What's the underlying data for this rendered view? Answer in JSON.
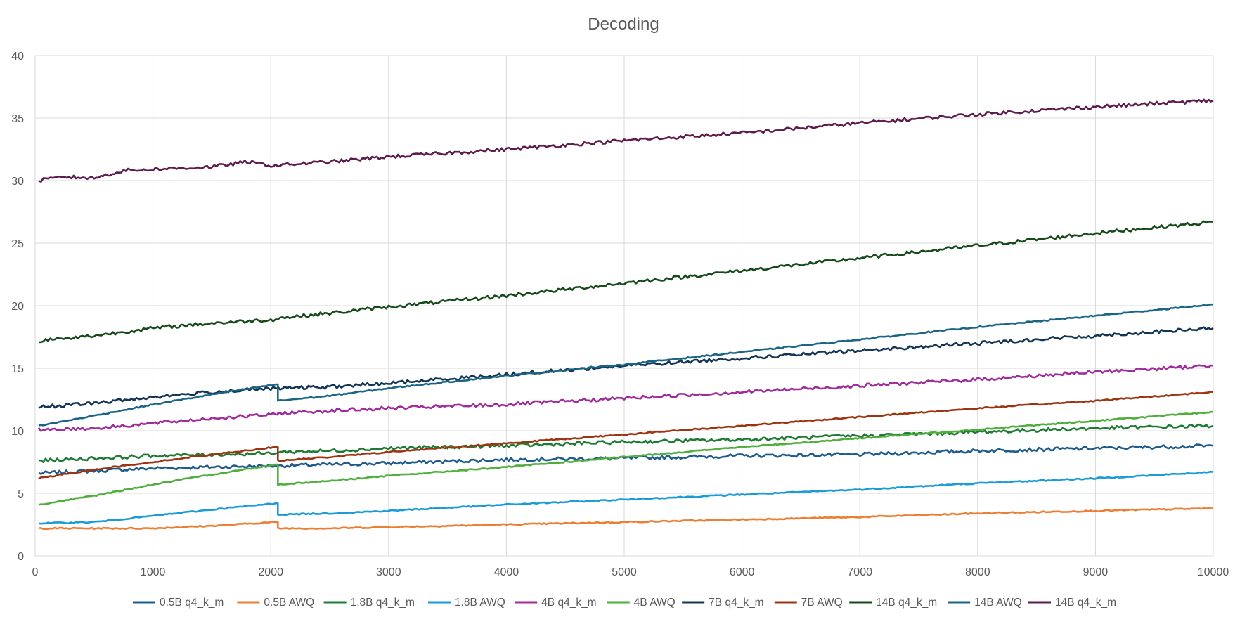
{
  "chart_data": {
    "type": "line",
    "title": "Decoding",
    "xlabel": "",
    "ylabel": "",
    "xlim": [
      0,
      10000
    ],
    "ylim": [
      0,
      40
    ],
    "x_ticks": [
      0,
      1000,
      2000,
      3000,
      4000,
      5000,
      6000,
      7000,
      8000,
      9000,
      10000
    ],
    "y_ticks": [
      0,
      5,
      10,
      15,
      20,
      25,
      30,
      35,
      40
    ],
    "grid": true,
    "legend_position": "bottom",
    "series": [
      {
        "name": "0.5B q4_k_m",
        "color": "#1f5c8b",
        "x": [
          30,
          500,
          1000,
          1500,
          2040,
          2060,
          2500,
          3000,
          4000,
          5000,
          6000,
          7000,
          8000,
          9000,
          10000
        ],
        "values": [
          6.6,
          6.8,
          7.0,
          7.1,
          7.2,
          7.2,
          7.3,
          7.4,
          7.7,
          7.8,
          8.0,
          8.1,
          8.4,
          8.6,
          8.8
        ]
      },
      {
        "name": "0.5B AWQ",
        "color": "#ed7d31",
        "x": [
          30,
          500,
          1000,
          1500,
          2040,
          2060,
          2500,
          3000,
          4000,
          5000,
          6000,
          7000,
          8000,
          9000,
          10000
        ],
        "values": [
          2.2,
          2.2,
          2.2,
          2.4,
          2.7,
          2.2,
          2.2,
          2.3,
          2.5,
          2.7,
          2.9,
          3.1,
          3.4,
          3.6,
          3.8
        ]
      },
      {
        "name": "1.8B q4_k_m",
        "color": "#1e7b34",
        "x": [
          30,
          500,
          1000,
          1500,
          2040,
          2060,
          2500,
          3000,
          4000,
          5000,
          6000,
          7000,
          8000,
          9000,
          10000
        ],
        "values": [
          7.6,
          7.8,
          8.0,
          8.1,
          8.2,
          8.3,
          8.4,
          8.6,
          8.8,
          9.1,
          9.3,
          9.6,
          9.9,
          10.2,
          10.4
        ]
      },
      {
        "name": "1.8B AWQ",
        "color": "#1a9bd7",
        "x": [
          30,
          500,
          1000,
          1500,
          2040,
          2060,
          2500,
          3000,
          4000,
          5000,
          6000,
          7000,
          8000,
          9000,
          10000
        ],
        "values": [
          2.6,
          2.7,
          3.2,
          3.7,
          4.2,
          3.3,
          3.4,
          3.6,
          4.1,
          4.5,
          4.9,
          5.3,
          5.8,
          6.2,
          6.7
        ]
      },
      {
        "name": "4B q4_k_m",
        "color": "#a02b9a",
        "x": [
          30,
          500,
          1000,
          1500,
          2040,
          2060,
          2500,
          3000,
          4000,
          5000,
          6000,
          7000,
          8000,
          9000,
          10000
        ],
        "values": [
          10.1,
          10.2,
          10.6,
          11.0,
          11.3,
          11.4,
          11.6,
          11.8,
          12.1,
          12.6,
          13.1,
          13.6,
          14.1,
          14.7,
          15.2
        ]
      },
      {
        "name": "4B AWQ",
        "color": "#4fae3c",
        "x": [
          30,
          500,
          1000,
          1500,
          2040,
          2060,
          2500,
          3000,
          4000,
          5000,
          6000,
          7000,
          8000,
          9000,
          10000
        ],
        "values": [
          4.1,
          4.8,
          5.7,
          6.5,
          7.3,
          5.7,
          6.0,
          6.4,
          7.1,
          7.9,
          8.7,
          9.4,
          10.1,
          10.8,
          11.5
        ]
      },
      {
        "name": "7B q4_k_m",
        "color": "#143553",
        "x": [
          30,
          500,
          1000,
          1500,
          2040,
          2060,
          2500,
          3000,
          4000,
          5000,
          6000,
          7000,
          8000,
          9000,
          10000
        ],
        "values": [
          11.9,
          12.2,
          12.7,
          13.1,
          13.4,
          13.4,
          13.5,
          13.8,
          14.5,
          15.2,
          15.8,
          16.4,
          17.0,
          17.6,
          18.2
        ]
      },
      {
        "name": "7B AWQ",
        "color": "#9c3412",
        "x": [
          30,
          500,
          1000,
          1500,
          2040,
          2060,
          2500,
          3000,
          4000,
          5000,
          6000,
          7000,
          8000,
          9000,
          10000
        ],
        "values": [
          6.2,
          6.9,
          7.5,
          8.1,
          8.7,
          7.6,
          7.9,
          8.3,
          9.0,
          9.7,
          10.4,
          11.1,
          11.8,
          12.4,
          13.1
        ]
      },
      {
        "name": "14B q4_k_m",
        "color": "#174a1b",
        "x": [
          30,
          500,
          1000,
          1500,
          2040,
          2060,
          2500,
          3000,
          4000,
          5000,
          6000,
          7000,
          8000,
          9000,
          10000
        ],
        "values": [
          17.2,
          17.6,
          18.2,
          18.6,
          18.9,
          19.0,
          19.4,
          19.9,
          20.8,
          21.8,
          22.8,
          23.8,
          24.8,
          25.8,
          26.7
        ]
      },
      {
        "name": "14B AWQ",
        "color": "#1a6485",
        "x": [
          30,
          500,
          1000,
          1500,
          2040,
          2060,
          2500,
          3000,
          4000,
          5000,
          6000,
          7000,
          8000,
          9000,
          10000
        ],
        "values": [
          10.4,
          11.2,
          12.1,
          12.9,
          13.7,
          12.4,
          12.8,
          13.4,
          14.4,
          15.3,
          16.3,
          17.3,
          18.3,
          19.2,
          20.1
        ]
      },
      {
        "name": "14B q4_k_m",
        "color": "#5e1b4e",
        "x": [
          30,
          250,
          500,
          750,
          1000,
          1500,
          1800,
          2000,
          2500,
          3000,
          4000,
          5000,
          6000,
          7000,
          8000,
          9000,
          10000
        ],
        "values": [
          30.0,
          30.3,
          30.2,
          30.8,
          30.9,
          31.1,
          31.5,
          31.2,
          31.5,
          31.9,
          32.5,
          33.2,
          33.8,
          34.6,
          35.3,
          35.9,
          36.4
        ]
      }
    ]
  }
}
